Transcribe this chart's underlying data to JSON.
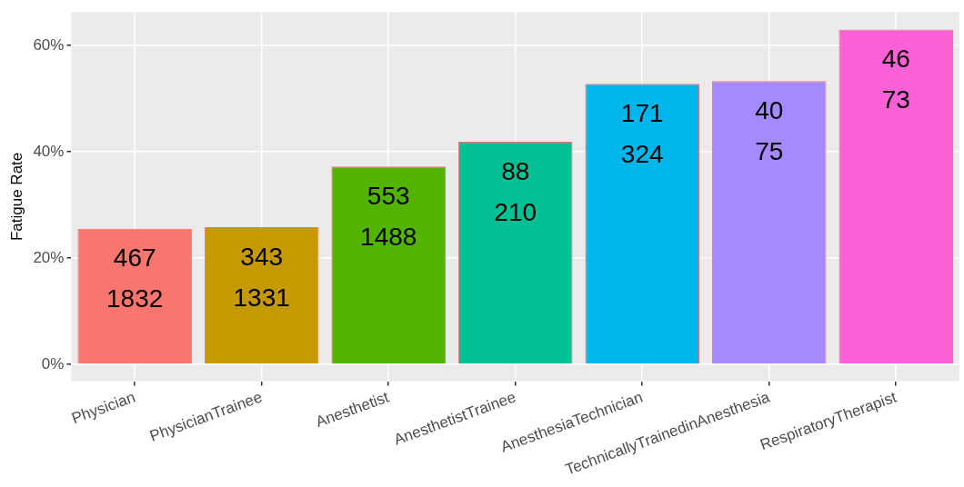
{
  "chart_data": {
    "type": "bar",
    "ylabel": "Fatigue Rate",
    "categories": [
      "Physician",
      "PhysicianTrainee",
      "Anesthetist",
      "AnesthetistTrainee",
      "AnesthesiaTechnician",
      "TechnicallyTrainedinAnesthesia",
      "RespiratoryTherapist"
    ],
    "values": [
      25.5,
      25.8,
      37.2,
      41.9,
      52.8,
      53.3,
      63.0
    ],
    "colors": [
      "#f8766d",
      "#c49a00",
      "#53b400",
      "#00c094",
      "#00b6eb",
      "#a58aff",
      "#fb61d7"
    ],
    "annotations": [
      {
        "text": "467\n1832",
        "x": "Physician",
        "y": 25.5
      },
      {
        "text": "343\n1331",
        "x": "PhysicianTrainee",
        "y": 25.8
      },
      {
        "text": "553\n1488",
        "x": "Anesthetist",
        "y": 37.2
      },
      {
        "text": "88\n210",
        "x": "AnesthetistTrainee",
        "y": 41.9
      },
      {
        "text": "171\n324",
        "x": "AnesthesiaTechnician",
        "y": 52.8
      },
      {
        "text": "40\n75",
        "x": "TechnicallyTrainedinAnesthesia",
        "y": 53.3
      },
      {
        "text": "46\n73",
        "x": "RespiratoryTherapist",
        "y": 63.0
      }
    ],
    "ylim": [
      -3.2,
      66.3
    ],
    "yticks": [
      {
        "value": 0,
        "label": "0%"
      },
      {
        "value": 20,
        "label": "20%"
      },
      {
        "value": 40,
        "label": "40%"
      },
      {
        "value": 60,
        "label": "60%"
      }
    ],
    "grid": true,
    "legend": false
  }
}
